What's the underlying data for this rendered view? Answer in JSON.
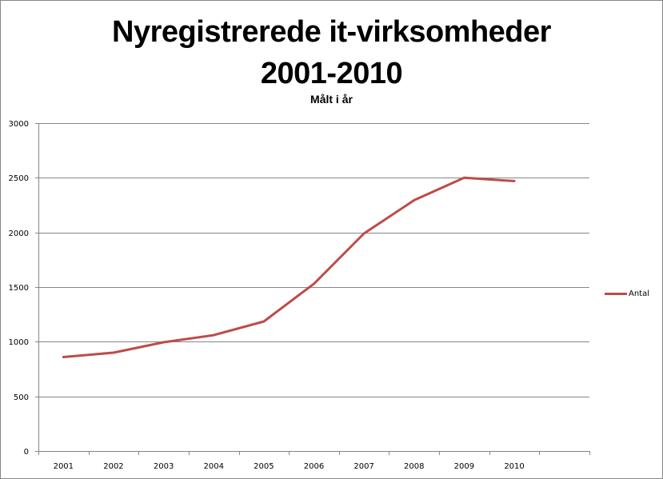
{
  "chart_data": {
    "type": "line",
    "title": "Nyregistrerede it-virksomheder 2001-2010",
    "title_lines": [
      "Nyregistrerede it-virksomheder",
      "2001-2010"
    ],
    "subtitle": "Målt i år",
    "xlabel": "",
    "ylabel": "",
    "categories": [
      "2001",
      "2002",
      "2003",
      "2004",
      "2005",
      "2006",
      "2007",
      "2008",
      "2009",
      "2010"
    ],
    "extra_empty_category_slots": 1,
    "series": [
      {
        "name": "Antal",
        "color": "#BE4B48",
        "values": [
          860,
          900,
          995,
          1060,
          1185,
          1530,
          1990,
          2295,
          2500,
          2470
        ]
      }
    ],
    "ylim": [
      0,
      3000
    ],
    "yticks": [
      0,
      500,
      1000,
      1500,
      2000,
      2500,
      3000
    ],
    "ytick_labels": [
      "0",
      "500",
      "1000",
      "1500",
      "2000",
      "2500",
      "3000"
    ],
    "grid": true,
    "legend_position": "right"
  },
  "colors": {
    "series": "#BE4B48",
    "grid": "#868686",
    "frame": "#868686"
  }
}
